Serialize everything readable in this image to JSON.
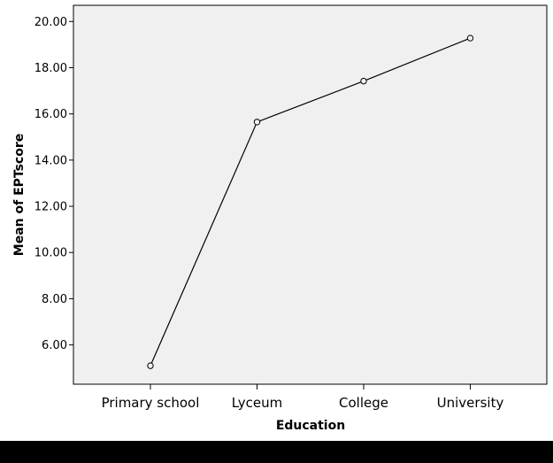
{
  "chart_data": {
    "type": "line",
    "title": "",
    "xlabel": "Education",
    "ylabel": "Mean of EPTscore",
    "categories": [
      "Primary school",
      "Lyceum",
      "College",
      "University"
    ],
    "series": [
      {
        "values": [
          5.1,
          15.65,
          17.42,
          19.28
        ]
      }
    ],
    "ylim": [
      4.3,
      20.7
    ],
    "yticks": [
      6,
      8,
      10,
      12,
      14,
      16,
      18,
      20
    ],
    "ytick_labels": [
      "6.00",
      "8.00",
      "10.00",
      "12.00",
      "14.00",
      "16.00",
      "18.00",
      "20.00"
    ],
    "grid": false,
    "legend": "none",
    "marker": "open-circle",
    "colors": {
      "plot_background": "#f0f0f0",
      "line": "#000000",
      "axis": "#000000"
    }
  }
}
